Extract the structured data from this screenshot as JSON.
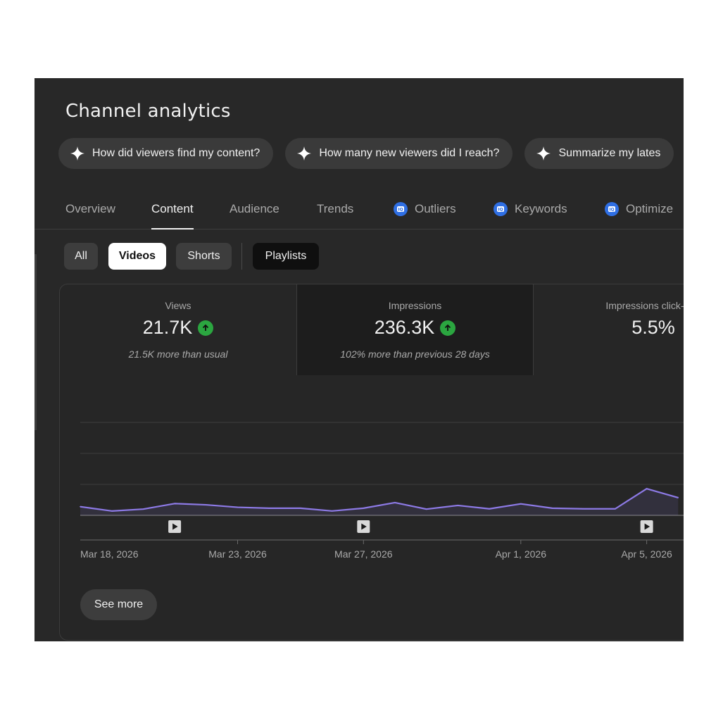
{
  "title": "Channel analytics",
  "suggestions": [
    {
      "label": "How did viewers find my content?",
      "icon": "sparkle-icon"
    },
    {
      "label": "How many new viewers did I reach?",
      "icon": "sparkle-icon"
    },
    {
      "label": "Summarize my lates",
      "icon": "sparkle-icon"
    }
  ],
  "tabs": [
    {
      "label": "Overview",
      "active": false
    },
    {
      "label": "Content",
      "active": true
    },
    {
      "label": "Audience",
      "active": false
    },
    {
      "label": "Trends",
      "active": false
    },
    {
      "label": "Outliers",
      "active": false,
      "icon": "vidiq-icon"
    },
    {
      "label": "Keywords",
      "active": false,
      "icon": "vidiq-icon"
    },
    {
      "label": "Optimize",
      "active": false,
      "icon": "vidiq-icon"
    }
  ],
  "filters": [
    {
      "label": "All",
      "selected": false
    },
    {
      "label": "Videos",
      "selected": true
    },
    {
      "label": "Shorts",
      "selected": false
    },
    {
      "label": "Playlists",
      "selected": false
    }
  ],
  "metrics": [
    {
      "label": "Views",
      "value": "21.7K",
      "trend": "up",
      "note": "21.5K more than usual"
    },
    {
      "label": "Impressions",
      "value": "236.3K",
      "trend": "up",
      "note": "102% more than previous 28 days"
    },
    {
      "label": "Impressions click-thro",
      "value": "5.5%"
    }
  ],
  "colors": {
    "accent_line": "#8d7ae6",
    "trend_up": "#2ba640",
    "vidiq_blue": "#2f6fe4"
  },
  "chart_data": {
    "type": "line",
    "x_tick_labels": [
      "Mar 18, 2026",
      "Mar 23, 2026",
      "Mar 27, 2026",
      "Apr 1, 2026",
      "Apr 5, 2026"
    ],
    "x": [
      "Mar 18",
      "Mar 19",
      "Mar 20",
      "Mar 21",
      "Mar 22",
      "Mar 23",
      "Mar 24",
      "Mar 25",
      "Mar 26",
      "Mar 27",
      "Mar 28",
      "Mar 29",
      "Mar 30",
      "Mar 31",
      "Apr 1",
      "Apr 2",
      "Apr 3",
      "Apr 4",
      "Apr 5",
      "Apr 6"
    ],
    "series": [
      {
        "values": [
          280,
          140,
          200,
          380,
          340,
          260,
          230,
          230,
          140,
          230,
          410,
          200,
          320,
          210,
          370,
          230,
          210,
          210,
          860,
          570
        ]
      }
    ],
    "ylim": [
      0,
      3000
    ],
    "grid": true,
    "video_markers": [
      "Mar 21",
      "Mar 27",
      "Apr 5"
    ]
  },
  "see_more_label": "See more"
}
